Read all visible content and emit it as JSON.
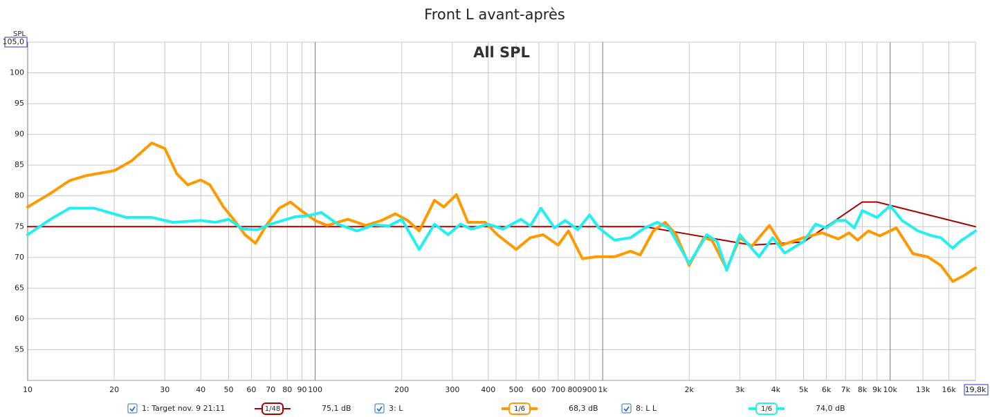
{
  "chart_data": {
    "type": "line",
    "title": "Front L avant-après",
    "subtitle": "All SPL",
    "y_label": "SPL",
    "log_x": true,
    "grid": true,
    "xlim": [
      10,
      19800
    ],
    "ylim": [
      50,
      105
    ],
    "xticks": [
      10,
      20,
      30,
      40,
      50,
      60,
      70,
      80,
      90,
      100,
      200,
      300,
      400,
      500,
      600,
      700,
      800,
      900,
      {
        "value": 1000,
        "label": "1k"
      },
      {
        "value": 2000,
        "label": "2k"
      },
      {
        "value": 3000,
        "label": "3k"
      },
      {
        "value": 4000,
        "label": "4k"
      },
      {
        "value": 5000,
        "label": "5k"
      },
      {
        "value": 6000,
        "label": "6k"
      },
      {
        "value": 7000,
        "label": "7k"
      },
      {
        "value": 8000,
        "label": "8k"
      },
      {
        "value": 9000,
        "label": "9k"
      },
      {
        "value": 10000,
        "label": "10k"
      },
      {
        "value": 13000,
        "label": "13k"
      },
      {
        "value": 16000,
        "label": "16k"
      },
      {
        "value": 19800,
        "label": "19,8k"
      }
    ],
    "yticks": [
      55,
      60,
      65,
      70,
      75,
      80,
      85,
      90,
      95,
      100,
      {
        "value": 105,
        "label": "105,0"
      }
    ],
    "series": [
      {
        "name": "1: Target nov. 9 21:11",
        "smoothing": "1/48",
        "readout": "75,1 dB",
        "color": "#a80000",
        "width": 2,
        "x": [
          10,
          1400,
          3300,
          5000,
          8000,
          9000,
          19800
        ],
        "values": [
          75,
          75,
          72,
          72.5,
          79,
          79,
          75
        ]
      },
      {
        "name": "3: L",
        "smoothing": "1/6",
        "readout": "68,3 dB",
        "color": "#ff9900",
        "width": 4,
        "x": [
          10,
          12,
          14,
          16,
          20,
          23,
          27,
          30,
          33,
          36,
          40,
          43,
          48,
          52,
          57,
          62,
          68,
          75,
          82,
          90,
          100,
          110,
          130,
          150,
          170,
          190,
          210,
          230,
          260,
          280,
          310,
          340,
          390,
          430,
          500,
          560,
          620,
          700,
          760,
          850,
          950,
          1100,
          1250,
          1350,
          1500,
          1650,
          1800,
          2000,
          2250,
          2400,
          2700,
          3000,
          3300,
          3800,
          4200,
          5000,
          5800,
          6600,
          7200,
          7700,
          8400,
          9200,
          10500,
          12000,
          13500,
          15000,
          16500,
          18000,
          19800
        ],
        "values": [
          78.2,
          80.4,
          82.5,
          83.3,
          84.1,
          85.7,
          88.6,
          87.7,
          83.6,
          81.8,
          82.6,
          81.8,
          78.2,
          76.2,
          73.7,
          72.3,
          75.4,
          78.0,
          79.0,
          77.5,
          76.0,
          75.2,
          76.2,
          75.2,
          76.0,
          77.1,
          76.0,
          74.3,
          79.3,
          78.2,
          80.2,
          75.7,
          75.7,
          73.7,
          71.3,
          73.2,
          73.7,
          72.0,
          74.3,
          69.8,
          70.1,
          70.1,
          71.0,
          70.4,
          74.3,
          75.7,
          73.7,
          68.7,
          73.2,
          72.8,
          68.1,
          73.2,
          71.8,
          75.2,
          72.0,
          73.2,
          74.0,
          73.0,
          74.0,
          72.8,
          74.3,
          73.5,
          74.8,
          70.6,
          70.1,
          68.7,
          66.1,
          67.0,
          68.3
        ]
      },
      {
        "name": "8: L L",
        "smoothing": "1/6",
        "readout": "74,0 dB",
        "color": "#22f0f0",
        "width": 4,
        "x": [
          10,
          12,
          14,
          17,
          22,
          27,
          32,
          40,
          45,
          50,
          56,
          63,
          70,
          85,
          95,
          105,
          120,
          140,
          160,
          180,
          200,
          230,
          260,
          290,
          320,
          350,
          400,
          450,
          520,
          560,
          610,
          680,
          740,
          820,
          900,
          970,
          1100,
          1250,
          1400,
          1550,
          1700,
          2000,
          2300,
          2500,
          2700,
          3000,
          3500,
          3900,
          4300,
          5000,
          5500,
          6000,
          6500,
          7000,
          7500,
          8000,
          9000,
          10000,
          11000,
          12500,
          14000,
          15000,
          16500,
          17500,
          19800
        ],
        "values": [
          73.7,
          76.2,
          78.0,
          78.0,
          76.5,
          76.5,
          75.7,
          76.0,
          75.7,
          76.2,
          74.6,
          74.5,
          75.4,
          76.6,
          76.8,
          77.3,
          75.4,
          74.3,
          75.3,
          75.1,
          76.2,
          71.3,
          75.4,
          73.7,
          75.4,
          74.6,
          75.4,
          74.6,
          76.2,
          75.1,
          78.0,
          74.8,
          76.0,
          74.5,
          76.9,
          74.8,
          72.8,
          73.2,
          74.8,
          75.7,
          74.8,
          69.0,
          73.7,
          72.6,
          67.9,
          73.7,
          70.1,
          73.2,
          70.7,
          72.6,
          75.4,
          74.8,
          76.0,
          76.0,
          74.8,
          77.6,
          76.5,
          78.4,
          76.0,
          74.3,
          73.5,
          73.2,
          71.5,
          72.6,
          74.3
        ]
      }
    ]
  }
}
